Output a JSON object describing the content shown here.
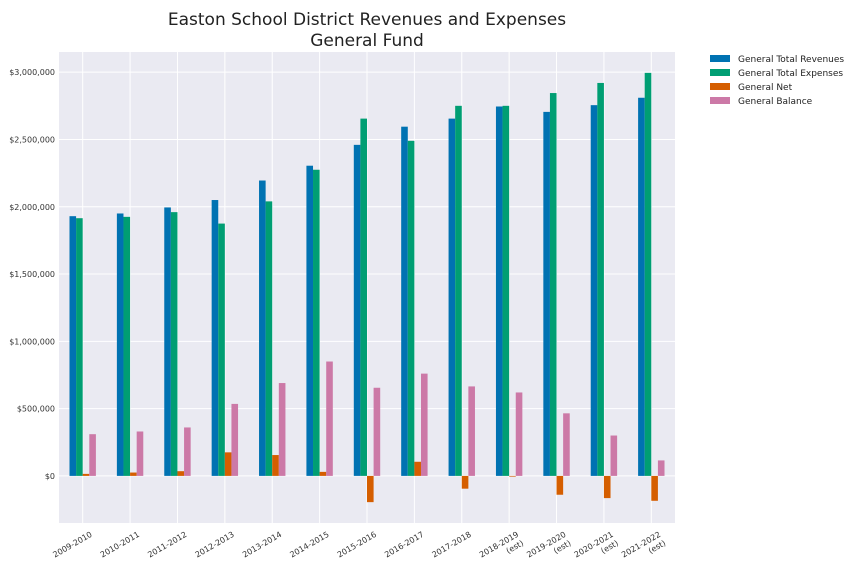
{
  "chart_data": {
    "type": "bar",
    "title": "Easton School District Revenues and Expenses",
    "subtitle": "General Fund",
    "xlabel": "",
    "ylabel": "",
    "categories": [
      [
        "2009-2010"
      ],
      [
        "2010-2011"
      ],
      [
        "2011-2012"
      ],
      [
        "2012-2013"
      ],
      [
        "2013-2014"
      ],
      [
        "2014-2015"
      ],
      [
        "2015-2016"
      ],
      [
        "2016-2017"
      ],
      [
        "2017-2018"
      ],
      [
        "2018-2019",
        "(est)"
      ],
      [
        "2019-2020",
        "(est)"
      ],
      [
        "2020-2021",
        "(est)"
      ],
      [
        "2021-2022",
        "(est)"
      ]
    ],
    "ylim": [
      -350000,
      3150000
    ],
    "yticks": [
      0,
      500000,
      1000000,
      1500000,
      2000000,
      2500000,
      3000000
    ],
    "ytick_labels": [
      "$0",
      "$500,000",
      "$1,000,000",
      "$1,500,000",
      "$2,000,000",
      "$2,500,000",
      "$3,000,000"
    ],
    "grid": true,
    "legend_position": "outside-top-right",
    "series": [
      {
        "name": "General Total Revenues",
        "color": "#0072b2",
        "values": [
          1930000,
          1950000,
          1995000,
          2050000,
          2195000,
          2305000,
          2460000,
          2595000,
          2655000,
          2745000,
          2705000,
          2755000,
          2810000
        ]
      },
      {
        "name": "General Total Expenses",
        "color": "#009e73",
        "values": [
          1915000,
          1925000,
          1960000,
          1875000,
          2040000,
          2275000,
          2655000,
          2490000,
          2750000,
          2750000,
          2845000,
          2920000,
          2995000
        ]
      },
      {
        "name": "General Net",
        "color": "#d55e00",
        "values": [
          15000,
          25000,
          35000,
          175000,
          155000,
          30000,
          -195000,
          105000,
          -95000,
          -5000,
          -140000,
          -165000,
          -185000
        ]
      },
      {
        "name": "General Balance",
        "color": "#cc79a7",
        "values": [
          310000,
          330000,
          360000,
          535000,
          690000,
          850000,
          655000,
          760000,
          665000,
          620000,
          465000,
          300000,
          115000
        ]
      }
    ]
  }
}
